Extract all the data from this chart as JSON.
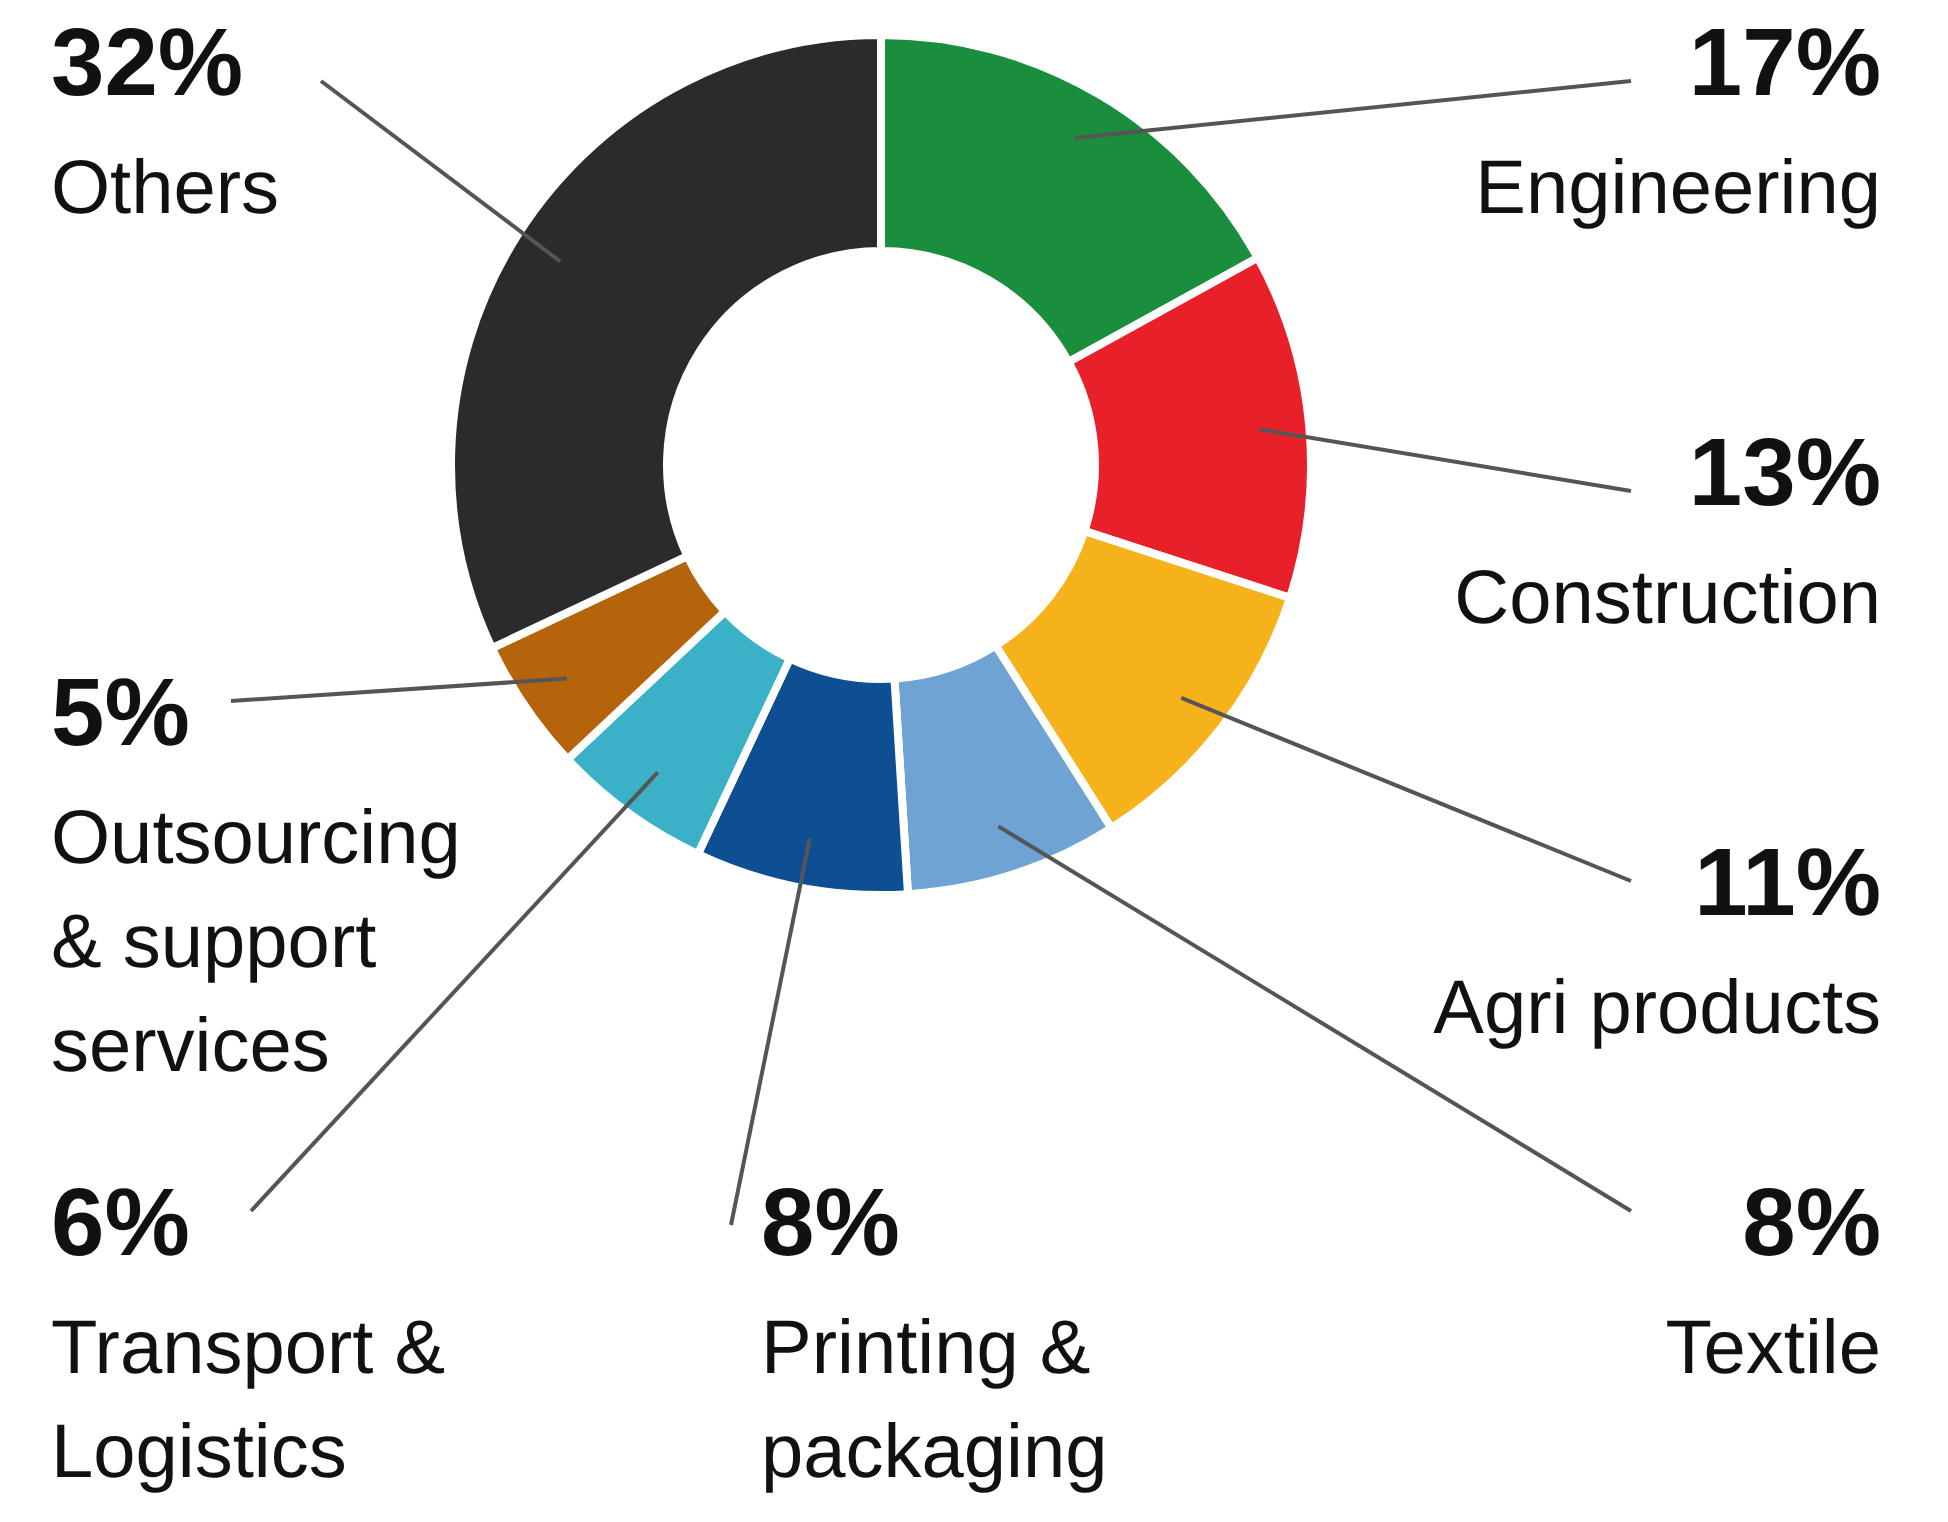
{
  "chart_data": {
    "type": "donut",
    "categories": [
      "Engineering",
      "Construction",
      "Agri products",
      "Textile",
      "Printing & packaging",
      "Transport & Logistics",
      "Outsourcing & support services",
      "Others"
    ],
    "values": [
      17,
      13,
      11,
      8,
      8,
      6,
      5,
      32
    ],
    "colors": [
      "#1b8e3e",
      "#e8202a",
      "#f6b21b",
      "#6fa3d4",
      "#0e4f93",
      "#3bb1c8",
      "#b5640c",
      "#2b2b2d"
    ],
    "value_labels": [
      "17%",
      "13%",
      "11%",
      "8%",
      "8%",
      "6%",
      "5%",
      "32%"
    ]
  }
}
